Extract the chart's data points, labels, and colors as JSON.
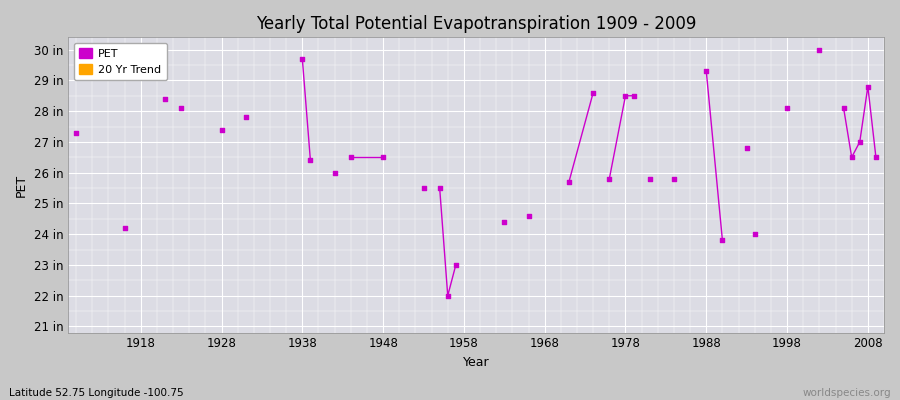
{
  "title": "Yearly Total Potential Evapotranspiration 1909 - 2009",
  "xlabel": "Year",
  "ylabel": "PET",
  "bottom_left_label": "Latitude 52.75 Longitude -100.75",
  "bottom_right_label": "worldspecies.org",
  "ytick_labels": [
    "21 in",
    "22 in",
    "23 in",
    "24 in",
    "25 in",
    "26 in",
    "27 in",
    "28 in",
    "29 in",
    "30 in"
  ],
  "ytick_values": [
    21,
    22,
    23,
    24,
    25,
    26,
    27,
    28,
    29,
    30
  ],
  "xtick_values": [
    1918,
    1928,
    1938,
    1948,
    1958,
    1968,
    1978,
    1988,
    1998,
    2008
  ],
  "pet_color": "#cc00cc",
  "trend_color": "#ffa500",
  "legend_pet_label": "PET",
  "legend_trend_label": "20 Yr Trend",
  "pet_data": {
    "years": [
      1910,
      1916,
      1921,
      1923,
      1928,
      1931,
      1938,
      1939,
      1942,
      1944,
      1948,
      1953,
      1955,
      1956,
      1957,
      1963,
      1966,
      1971,
      1974,
      1976,
      1978,
      1979,
      1981,
      1984,
      1988,
      1990,
      1993,
      1994,
      1998,
      2002,
      2005,
      2006,
      2007,
      2008,
      2009
    ],
    "values": [
      27.3,
      24.2,
      28.4,
      28.1,
      27.4,
      27.8,
      29.7,
      26.4,
      26.0,
      26.5,
      26.5,
      25.5,
      25.5,
      22.0,
      23.0,
      24.4,
      24.6,
      25.7,
      28.6,
      25.8,
      28.5,
      28.5,
      25.8,
      25.8,
      29.3,
      23.8,
      26.8,
      24.0,
      28.1,
      30.0,
      28.1,
      26.5,
      27.0,
      28.8,
      26.5
    ]
  },
  "connected_segments": [
    {
      "years": [
        1938,
        1939
      ],
      "values": [
        29.7,
        26.4
      ]
    },
    {
      "years": [
        1944,
        1948
      ],
      "values": [
        26.5,
        26.5
      ]
    },
    {
      "years": [
        1955,
        1956,
        1957
      ],
      "values": [
        25.5,
        22.0,
        23.0
      ]
    },
    {
      "years": [
        1971,
        1974
      ],
      "values": [
        25.7,
        28.6
      ]
    },
    {
      "years": [
        1976,
        1978,
        1979
      ],
      "values": [
        25.8,
        28.5,
        28.5
      ]
    },
    {
      "years": [
        1988,
        1990
      ],
      "values": [
        29.3,
        23.8
      ]
    },
    {
      "years": [
        2005,
        2006,
        2007,
        2008,
        2009
      ],
      "values": [
        28.1,
        26.5,
        27.0,
        28.8,
        26.5
      ]
    }
  ]
}
